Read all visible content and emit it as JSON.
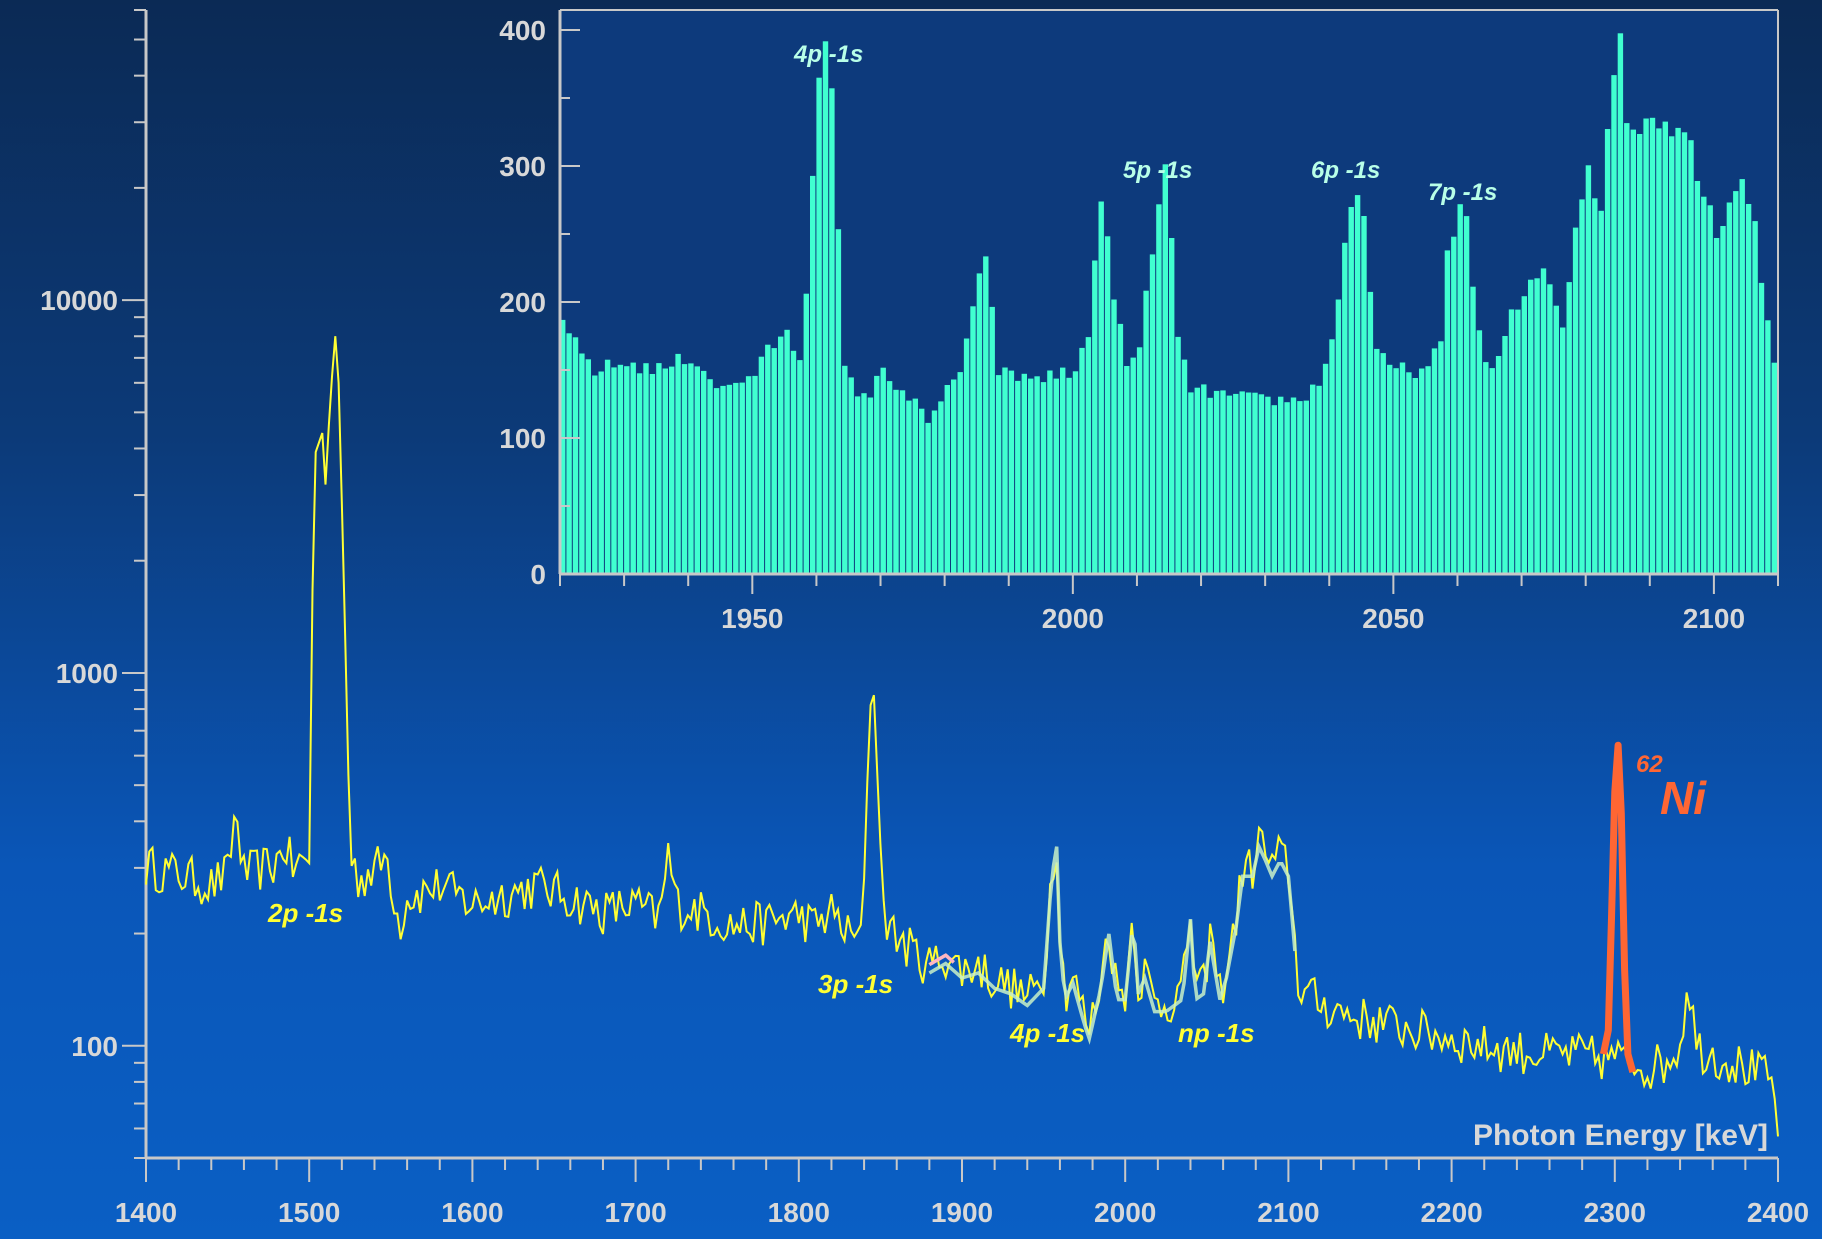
{
  "chart_data": [
    {
      "type": "line",
      "role": "main-spectrum",
      "xlabel": "Photon Energy  [keV]",
      "ylabel": "",
      "xlim": [
        1400,
        2400
      ],
      "ylim": [
        50,
        60000
      ],
      "yscale": "log",
      "x_ticks": [
        1400,
        1500,
        1600,
        1700,
        1800,
        1900,
        2000,
        2100,
        2200,
        2300,
        2400
      ],
      "y_ticks": [
        100,
        1000,
        10000
      ],
      "grid": false,
      "colors": {
        "spectrum": "#ffff33",
        "fit": "#c8f0c8",
        "fit_pink": "#ffb6c1",
        "ni_peak": "#ff6633"
      },
      "series": [
        {
          "role": "spectrum",
          "x": [
            1400,
            1420,
            1440,
            1450,
            1455,
            1460,
            1470,
            1480,
            1485,
            1490,
            1500,
            1503,
            1508,
            1510,
            1513,
            1516,
            1518,
            1521,
            1525,
            1530,
            1540,
            1548,
            1555,
            1560,
            1580,
            1600,
            1620,
            1640,
            1650,
            1660,
            1680,
            1700,
            1715,
            1720,
            1725,
            1740,
            1760,
            1780,
            1800,
            1810,
            1820,
            1830,
            1838,
            1842,
            1845,
            1848,
            1852,
            1858,
            1870,
            1880,
            1890,
            1900,
            1910,
            1920,
            1930,
            1940,
            1950,
            1955,
            1958,
            1960,
            1963,
            1968,
            1975,
            1978,
            1985,
            1990,
            1995,
            2000,
            2005,
            2008,
            2012,
            2018,
            2025,
            2035,
            2040,
            2043,
            2048,
            2052,
            2058,
            2062,
            2068,
            2072,
            2078,
            2082,
            2086,
            2090,
            2095,
            2100,
            2106,
            2110,
            2120,
            2140,
            2160,
            2180,
            2200,
            2220,
            2240,
            2260,
            2280,
            2295,
            2300,
            2305,
            2310,
            2320,
            2330,
            2340,
            2345,
            2350,
            2360,
            2380,
            2395,
            2400
          ],
          "y": [
            305,
            290,
            270,
            290,
            430,
            290,
            300,
            310,
            350,
            300,
            320,
            3800,
            4400,
            3200,
            5500,
            8000,
            6000,
            2000,
            330,
            280,
            300,
            320,
            210,
            250,
            270,
            240,
            255,
            270,
            260,
            250,
            230,
            240,
            220,
            330,
            240,
            230,
            210,
            215,
            225,
            210,
            230,
            200,
            190,
            500,
            1050,
            600,
            230,
            200,
            180,
            165,
            175,
            160,
            165,
            150,
            145,
            135,
            150,
            300,
            360,
            200,
            140,
            155,
            120,
            110,
            150,
            210,
            140,
            140,
            230,
            145,
            160,
            130,
            130,
            140,
            230,
            140,
            145,
            200,
            140,
            160,
            220,
            300,
            300,
            360,
            330,
            300,
            330,
            300,
            150,
            140,
            130,
            120,
            115,
            110,
            105,
            100,
            97,
            95,
            95,
            92,
            95,
            90,
            92,
            88,
            90,
            100,
            155,
            100,
            95,
            88,
            82,
            63
          ]
        },
        {
          "role": "ni-62-peak",
          "x": [
            2293,
            2296,
            2298,
            2300,
            2302,
            2304,
            2306,
            2308,
            2311
          ],
          "y": [
            95,
            110,
            220,
            480,
            640,
            420,
            160,
            95,
            85
          ]
        }
      ]
    },
    {
      "type": "bar",
      "role": "inset",
      "xlabel": "",
      "ylabel": "",
      "xlim": [
        1920,
        2110
      ],
      "ylim": [
        0,
        400
      ],
      "x_ticks": [
        1950,
        2000,
        2050,
        2100
      ],
      "y_ticks": [
        0,
        100,
        200,
        300,
        400
      ],
      "grid": false,
      "color": "#40ffd0",
      "x": [
        1920,
        1925,
        1930,
        1935,
        1940,
        1945,
        1950,
        1953,
        1955,
        1957,
        1958,
        1959,
        1960,
        1961,
        1962,
        1963,
        1964,
        1965,
        1966,
        1968,
        1970,
        1972,
        1975,
        1977,
        1978,
        1980,
        1982,
        1984,
        1985,
        1986,
        1987,
        1988,
        1990,
        1995,
        2000,
        2002,
        2003,
        2004,
        2005,
        2006,
        2008,
        2010,
        2012,
        2013,
        2014,
        2015,
        2016,
        2018,
        2020,
        2025,
        2030,
        2035,
        2038,
        2040,
        2041,
        2042,
        2043,
        2044,
        2045,
        2047,
        2050,
        2055,
        2057,
        2058,
        2059,
        2060,
        2061,
        2062,
        2063,
        2064,
        2066,
        2068,
        2070,
        2072,
        2074,
        2076,
        2078,
        2080,
        2082,
        2084,
        2085,
        2086,
        2087,
        2088,
        2090,
        2092,
        2094,
        2096,
        2098,
        2100,
        2102,
        2104,
        2106,
        2108,
        2110
      ],
      "y": [
        180,
        150,
        155,
        150,
        160,
        135,
        148,
        170,
        175,
        160,
        210,
        300,
        380,
        385,
        345,
        250,
        150,
        140,
        135,
        132,
        150,
        140,
        125,
        110,
        118,
        140,
        145,
        190,
        220,
        240,
        190,
        150,
        145,
        145,
        148,
        180,
        235,
        265,
        240,
        210,
        150,
        165,
        240,
        270,
        290,
        250,
        180,
        130,
        135,
        130,
        128,
        128,
        140,
        175,
        200,
        240,
        275,
        285,
        260,
        160,
        150,
        150,
        170,
        230,
        255,
        270,
        260,
        220,
        180,
        150,
        160,
        190,
        200,
        220,
        215,
        180,
        260,
        300,
        270,
        380,
        385,
        340,
        320,
        330,
        335,
        340,
        330,
        320,
        280,
        250,
        280,
        290,
        260,
        180,
        140
      ]
    }
  ],
  "annotations": {
    "peak_2p": "2p -1s",
    "peak_3p": "3p -1s",
    "peak_4p_main": "4p -1s",
    "peak_np": "np -1s",
    "isotope_mass": "62",
    "isotope_symbol": "Ni",
    "inset_4p": "4p -1s",
    "inset_5p": "5p -1s",
    "inset_6p": "6p -1s",
    "inset_7p": "7p -1s"
  }
}
